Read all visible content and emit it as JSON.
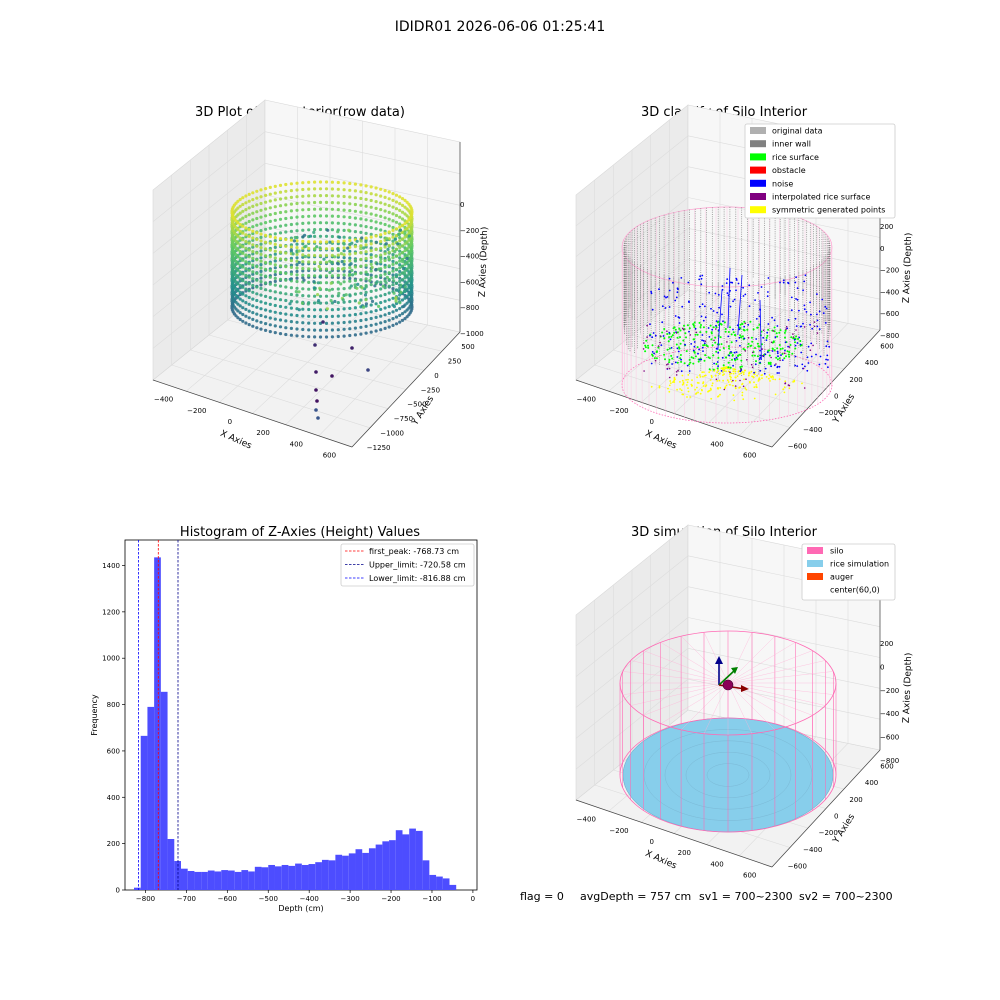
{
  "figure_title": "IDIDR01 2026-06-06 01:25:41",
  "footer": {
    "flag": "flag = 0",
    "avg_depth": "avgDepth = 757 cm",
    "sv1": "sv1 = 700~2300",
    "sv2": "sv2 = 700~2300"
  },
  "colors": {
    "original": "#b0b0b0",
    "inner_wall": "#808080",
    "rice_surface": "#00ff00",
    "obstacle": "#ff0000",
    "noise": "#0000ff",
    "interpolated": "#800080",
    "symmetric": "#ffff00",
    "silo": "#ff69b4",
    "rice_sim": "#87ceeb",
    "auger": "#ff4500",
    "hist_bar": "#4d4dff"
  },
  "chart_data": [
    {
      "type": "scatter",
      "subtype": "3d",
      "title": "3D Plot of Silo Interior(row data)",
      "xlabel": "X Axies",
      "ylabel": "Y Axies",
      "zlabel": "Z Axies (Depth)",
      "x_ticks": [
        "−400",
        "−200",
        "0",
        "200",
        "400",
        "600"
      ],
      "y_ticks": [
        "500",
        "250",
        "0",
        "−250",
        "−500",
        "−750",
        "−1000",
        "−1250"
      ],
      "z_ticks": [
        "0",
        "−200",
        "−400",
        "−600",
        "−800",
        "−1000"
      ],
      "colormap": "viridis"
    },
    {
      "type": "scatter",
      "subtype": "3d",
      "title": "3D classify of Silo Interior",
      "xlabel": "X Axies",
      "ylabel": "Y Axies",
      "zlabel": "Z Axies (Depth)",
      "x_ticks": [
        "−400",
        "−200",
        "0",
        "200",
        "400",
        "600"
      ],
      "y_ticks": [
        "600",
        "400",
        "200",
        "0",
        "−200",
        "−400",
        "−600"
      ],
      "z_ticks": [
        "200",
        "0",
        "−200",
        "−400",
        "−600",
        "−800"
      ],
      "legend": [
        "original data",
        "inner wall",
        "rice surface",
        "obstacle",
        "noise",
        "interpolated rice surface",
        "symmetric generated points"
      ],
      "legend_position": "top-right"
    },
    {
      "type": "bar",
      "subtype": "histogram",
      "title": "Histogram of Z-Axies (Height) Values",
      "xlabel": "Depth (cm)",
      "ylabel": "Frequency",
      "xlim": [
        -850,
        10
      ],
      "ylim": [
        0,
        1510
      ],
      "x_ticks": [
        -800,
        -700,
        -600,
        -500,
        -400,
        -300,
        -200,
        -100,
        0
      ],
      "y_ticks": [
        0,
        200,
        400,
        600,
        800,
        1000,
        1200,
        1400
      ],
      "x_tick_labels": [
        "−800",
        "−700",
        "−600",
        "−500",
        "−400",
        "−300",
        "−200",
        "−100",
        "0"
      ],
      "y_tick_labels": [
        "0",
        "200",
        "400",
        "600",
        "800",
        "1000",
        "1200",
        "1400"
      ],
      "bin_start": -828,
      "bin_width": 16.4,
      "values": [
        10,
        665,
        790,
        1435,
        855,
        220,
        125,
        92,
        82,
        78,
        78,
        84,
        80,
        86,
        84,
        78,
        86,
        80,
        100,
        98,
        108,
        102,
        108,
        104,
        114,
        108,
        112,
        120,
        130,
        128,
        152,
        148,
        158,
        176,
        160,
        180,
        196,
        210,
        215,
        258,
        240,
        265,
        255,
        128,
        65,
        58,
        50,
        22
      ],
      "lines": [
        {
          "label": "first_peak: -768.73 cm",
          "x": -768.73,
          "color": "#ff0000"
        },
        {
          "label": "Upper_limit: -720.58 cm",
          "x": -720.58,
          "color": "#00008b"
        },
        {
          "label": "Lower_limit: -816.88 cm",
          "x": -816.88,
          "color": "#0000ff"
        }
      ],
      "legend_position": "top-right"
    },
    {
      "type": "scatter",
      "subtype": "3d",
      "title": "3D simulation of Silo Interior",
      "xlabel": "X Axies",
      "ylabel": "Y Axies",
      "zlabel": "Z Axies (Depth)",
      "x_ticks": [
        "−400",
        "−200",
        "0",
        "200",
        "400",
        "600"
      ],
      "y_ticks": [
        "600",
        "400",
        "200",
        "0",
        "−200",
        "−400",
        "−600"
      ],
      "z_ticks": [
        "200",
        "0",
        "−200",
        "−400",
        "−600",
        "−800"
      ],
      "legend": [
        "silo",
        "rice simulation",
        "auger",
        "center(60,0)"
      ],
      "legend_position": "top-right"
    }
  ]
}
